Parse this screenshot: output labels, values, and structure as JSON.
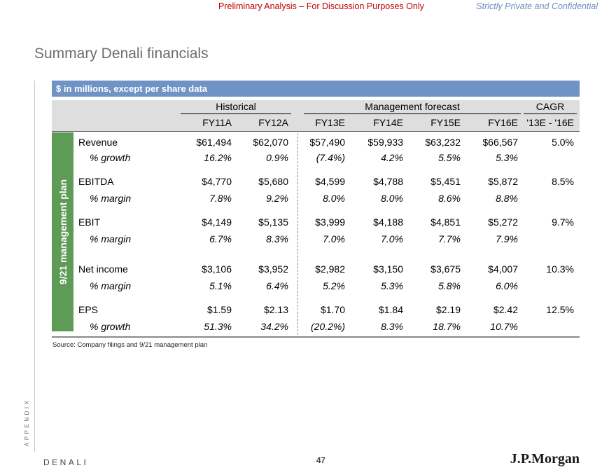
{
  "header": {
    "preliminary": "Preliminary Analysis – For Discussion Purposes Only",
    "confidential": "Strictly Private and Confidential"
  },
  "title": "Summary Denali financials",
  "banner": "$ in millions, except per share data",
  "side_label": "9/21 management plan",
  "groups": {
    "historical": "Historical",
    "forecast": "Management forecast",
    "cagr": "CAGR"
  },
  "columns": [
    "FY11A",
    "FY12A",
    "FY13E",
    "FY14E",
    "FY15E",
    "FY16E",
    "'13E - '16E"
  ],
  "rows": [
    {
      "label": "Revenue",
      "values": [
        "$61,494",
        "$62,070",
        "$57,490",
        "$59,933",
        "$63,232",
        "$66,567",
        "5.0%"
      ]
    },
    {
      "label": "% growth",
      "values": [
        "16.2%",
        "0.9%",
        "(7.4%)",
        "4.2%",
        "5.5%",
        "5.3%",
        ""
      ]
    },
    {
      "label": "EBITDA",
      "values": [
        "$4,770",
        "$5,680",
        "$4,599",
        "$4,788",
        "$5,451",
        "$5,872",
        "8.5%"
      ]
    },
    {
      "label": "% margin",
      "values": [
        "7.8%",
        "9.2%",
        "8.0%",
        "8.0%",
        "8.6%",
        "8.8%",
        ""
      ]
    },
    {
      "label": "EBIT",
      "values": [
        "$4,149",
        "$5,135",
        "$3,999",
        "$4,188",
        "$4,851",
        "$5,272",
        "9.7%"
      ]
    },
    {
      "label": "% margin",
      "values": [
        "6.7%",
        "8.3%",
        "7.0%",
        "7.0%",
        "7.7%",
        "7.9%",
        ""
      ]
    },
    {
      "label": "Net income",
      "values": [
        "$3,106",
        "$3,952",
        "$2,982",
        "$3,150",
        "$3,675",
        "$4,007",
        "10.3%"
      ]
    },
    {
      "label": "% margin",
      "values": [
        "5.1%",
        "6.4%",
        "5.2%",
        "5.3%",
        "5.8%",
        "6.0%",
        ""
      ]
    },
    {
      "label": "EPS",
      "values": [
        "$1.59",
        "$2.13",
        "$1.70",
        "$1.84",
        "$2.19",
        "$2.42",
        "12.5%"
      ]
    },
    {
      "label": "% growth",
      "values": [
        "51.3%",
        "34.2%",
        "(20.2%)",
        "8.3%",
        "18.7%",
        "10.7%",
        ""
      ]
    }
  ],
  "source": "Source: Company filings and 9/21 management plan",
  "footer": {
    "appendix": "APPENDIX",
    "project": "DENALI",
    "page": "47",
    "logo": "J.P.Morgan"
  }
}
